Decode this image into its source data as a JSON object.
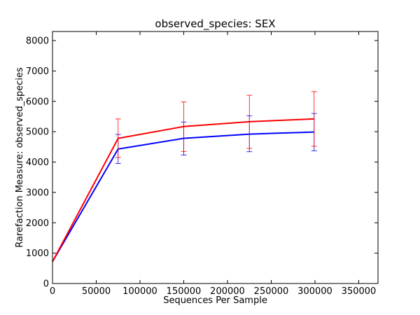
{
  "chart_data": {
    "type": "line",
    "title": "observed_species: SEX",
    "xlabel": "Sequences Per Sample",
    "ylabel": "Rarefaction Measure: observed_species",
    "xlim": [
      0,
      372000
    ],
    "ylim": [
      0,
      8300
    ],
    "x_ticks": [
      0,
      50000,
      100000,
      150000,
      200000,
      250000,
      300000,
      350000
    ],
    "y_ticks": [
      0,
      1000,
      2000,
      3000,
      4000,
      5000,
      6000,
      7000,
      8000
    ],
    "grid": false,
    "legend": "none",
    "x": [
      10,
      75000,
      150000,
      225000,
      299000
    ],
    "series": [
      {
        "color": "#ff0000",
        "values": [
          720,
          4780,
          5170,
          5330,
          5420
        ],
        "error_low": [
          720,
          4150,
          4350,
          4450,
          4520
        ],
        "error_high": [
          720,
          5420,
          5980,
          6200,
          6320
        ]
      },
      {
        "color": "#0000ff",
        "values": [
          720,
          4430,
          4780,
          4920,
          4990
        ],
        "error_low": [
          720,
          3950,
          4230,
          4340,
          4370
        ],
        "error_high": [
          720,
          4910,
          5320,
          5520,
          5600
        ]
      }
    ]
  }
}
